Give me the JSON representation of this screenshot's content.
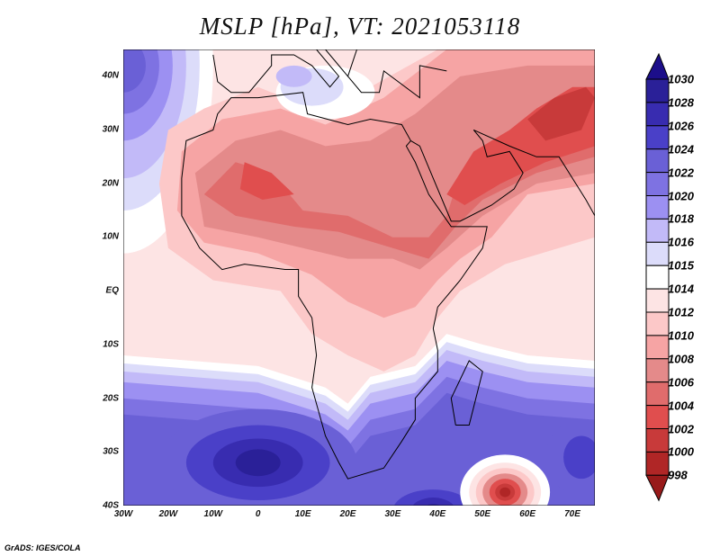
{
  "title": "MSLP [hPa], VT: 2021053118",
  "credit": "GrADS: IGES/COLA",
  "map": {
    "lon_range": [
      -30,
      75
    ],
    "lat_range": [
      -40,
      45
    ],
    "x_ticks": [
      "30W",
      "20W",
      "10W",
      "0",
      "10E",
      "20E",
      "30E",
      "40E",
      "50E",
      "60E",
      "70E"
    ],
    "y_ticks": [
      "40N",
      "30N",
      "20N",
      "10N",
      "EQ",
      "10S",
      "20S",
      "30S",
      "40S"
    ]
  },
  "colorbar": {
    "labels": [
      "1030",
      "1028",
      "1026",
      "1024",
      "1022",
      "1020",
      "1018",
      "1016",
      "1015",
      "1014",
      "1012",
      "1010",
      "1008",
      "1006",
      "1004",
      "1002",
      "1000",
      "998"
    ],
    "colors": [
      "#1c0e8a",
      "#2a2098",
      "#382cb0",
      "#4a40c8",
      "#6a60d6",
      "#7e72e2",
      "#9c90f2",
      "#c2baf8",
      "#dcdcfa",
      "#ffffff",
      "#fde4e4",
      "#fcc8c8",
      "#f6a4a4",
      "#e48a8a",
      "#e06c6c",
      "#e04e4e",
      "#c83a3a",
      "#b02626",
      "#981a1a"
    ]
  }
}
